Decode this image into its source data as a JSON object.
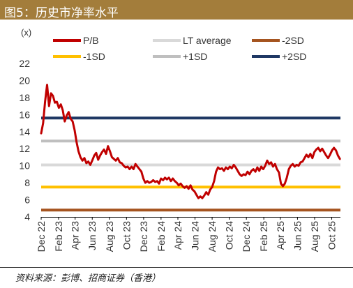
{
  "title": "图5：历史市净率水平",
  "source": "资料来源：彭博、招商证券（香港）",
  "colors": {
    "title_bar": "#a37d3b",
    "pb": "#c00000",
    "lt_average": "#d9d9d9",
    "minus2sd": "#a5541f",
    "minus1sd": "#ffc000",
    "plus1sd": "#bfbfbf",
    "plus2sd": "#1f3864"
  },
  "chart_data": {
    "type": "line",
    "ylabel": "(x)",
    "ylim": [
      4,
      22
    ],
    "y_ticks": [
      "4",
      "6",
      "8",
      "10",
      "12",
      "14",
      "16",
      "18",
      "20",
      "22"
    ],
    "x_start": "2022-12",
    "x_end": "2025-11",
    "x_ticks": [
      {
        "label": "Dec 22",
        "date": "2022-12"
      },
      {
        "label": "Feb 23",
        "date": "2023-02"
      },
      {
        "label": "Apr 23",
        "date": "2023-04"
      },
      {
        "label": "Jun 23",
        "date": "2023-06"
      },
      {
        "label": "Aug 23",
        "date": "2023-08"
      },
      {
        "label": "Oct 23",
        "date": "2023-10"
      },
      {
        "label": "Dec 23",
        "date": "2023-12"
      },
      {
        "label": "Feb 24",
        "date": "2024-02"
      },
      {
        "label": "Apr 24",
        "date": "2024-04"
      },
      {
        "label": "Jun 24",
        "date": "2024-06"
      },
      {
        "label": "Aug 24",
        "date": "2024-08"
      },
      {
        "label": "Oct 24",
        "date": "2024-10"
      },
      {
        "label": "Dec 24",
        "date": "2024-12"
      },
      {
        "label": "Feb 25",
        "date": "2025-02"
      },
      {
        "label": "Apr 25",
        "date": "2025-04"
      },
      {
        "label": "Jun 25",
        "date": "2025-06"
      },
      {
        "label": "Aug 25",
        "date": "2025-08"
      },
      {
        "label": "Oct 25",
        "date": "2025-10"
      }
    ],
    "legend": [
      "P/B",
      "LT average",
      "-2SD",
      "-1SD",
      "+1SD",
      "+2SD"
    ],
    "legend_placement": "top",
    "grid": false,
    "reference_lines": [
      {
        "name": "LT average",
        "value": 10.1
      },
      {
        "name": "-2SD",
        "value": 4.8
      },
      {
        "name": "-1SD",
        "value": 7.5
      },
      {
        "name": "+1SD",
        "value": 12.9
      },
      {
        "name": "+2SD",
        "value": 15.6
      }
    ],
    "series": [
      {
        "name": "P/B",
        "points": [
          [
            "2022-12-01",
            13.8
          ],
          [
            "2022-12-08",
            15.0
          ],
          [
            "2022-12-15",
            17.5
          ],
          [
            "2022-12-22",
            19.5
          ],
          [
            "2022-12-29",
            17.0
          ],
          [
            "2023-01-05",
            18.5
          ],
          [
            "2023-01-12",
            18.2
          ],
          [
            "2023-01-19",
            17.4
          ],
          [
            "2023-01-26",
            17.5
          ],
          [
            "2023-02-02",
            16.8
          ],
          [
            "2023-02-09",
            17.2
          ],
          [
            "2023-02-16",
            16.5
          ],
          [
            "2023-02-23",
            15.2
          ],
          [
            "2023-03-02",
            15.9
          ],
          [
            "2023-03-09",
            16.3
          ],
          [
            "2023-03-16",
            15.5
          ],
          [
            "2023-03-23",
            15.2
          ],
          [
            "2023-03-30",
            14.2
          ],
          [
            "2023-04-06",
            12.8
          ],
          [
            "2023-04-13",
            11.7
          ],
          [
            "2023-04-20",
            11.0
          ],
          [
            "2023-04-27",
            10.6
          ],
          [
            "2023-05-04",
            10.9
          ],
          [
            "2023-05-11",
            10.3
          ],
          [
            "2023-05-18",
            10.5
          ],
          [
            "2023-05-25",
            10.1
          ],
          [
            "2023-06-01",
            10.6
          ],
          [
            "2023-06-08",
            11.2
          ],
          [
            "2023-06-15",
            11.5
          ],
          [
            "2023-06-22",
            10.7
          ],
          [
            "2023-06-29",
            11.2
          ],
          [
            "2023-07-06",
            11.6
          ],
          [
            "2023-07-13",
            11.9
          ],
          [
            "2023-07-20",
            11.4
          ],
          [
            "2023-07-27",
            12.3
          ],
          [
            "2023-08-03",
            11.7
          ],
          [
            "2023-08-10",
            11.0
          ],
          [
            "2023-08-17",
            10.8
          ],
          [
            "2023-08-24",
            10.6
          ],
          [
            "2023-08-31",
            10.9
          ],
          [
            "2023-09-07",
            10.4
          ],
          [
            "2023-09-14",
            10.3
          ],
          [
            "2023-09-21",
            10.0
          ],
          [
            "2023-09-28",
            9.8
          ],
          [
            "2023-10-05",
            9.9
          ],
          [
            "2023-10-12",
            9.6
          ],
          [
            "2023-10-19",
            9.9
          ],
          [
            "2023-10-26",
            9.6
          ],
          [
            "2023-11-02",
            10.2
          ],
          [
            "2023-11-09",
            9.9
          ],
          [
            "2023-11-16",
            9.6
          ],
          [
            "2023-11-23",
            9.3
          ],
          [
            "2023-11-30",
            8.5
          ],
          [
            "2023-12-07",
            8.0
          ],
          [
            "2023-12-14",
            8.2
          ],
          [
            "2023-12-21",
            8.0
          ],
          [
            "2023-12-28",
            8.1
          ],
          [
            "2024-01-04",
            8.3
          ],
          [
            "2024-01-11",
            8.1
          ],
          [
            "2024-01-18",
            8.2
          ],
          [
            "2024-01-25",
            7.9
          ],
          [
            "2024-02-01",
            8.5
          ],
          [
            "2024-02-08",
            8.3
          ],
          [
            "2024-02-15",
            8.6
          ],
          [
            "2024-02-22",
            8.4
          ],
          [
            "2024-02-29",
            8.6
          ],
          [
            "2024-03-07",
            8.2
          ],
          [
            "2024-03-14",
            8.5
          ],
          [
            "2024-03-21",
            8.2
          ],
          [
            "2024-03-28",
            8.0
          ],
          [
            "2024-04-04",
            7.7
          ],
          [
            "2024-04-11",
            7.9
          ],
          [
            "2024-04-18",
            7.6
          ],
          [
            "2024-04-25",
            7.4
          ],
          [
            "2024-05-02",
            7.6
          ],
          [
            "2024-05-09",
            7.3
          ],
          [
            "2024-05-16",
            7.7
          ],
          [
            "2024-05-23",
            7.2
          ],
          [
            "2024-05-30",
            7.0
          ],
          [
            "2024-06-06",
            6.6
          ],
          [
            "2024-06-13",
            6.2
          ],
          [
            "2024-06-20",
            6.4
          ],
          [
            "2024-06-27",
            6.2
          ],
          [
            "2024-07-04",
            6.5
          ],
          [
            "2024-07-11",
            6.9
          ],
          [
            "2024-07-18",
            6.6
          ],
          [
            "2024-07-25",
            7.2
          ],
          [
            "2024-08-01",
            7.5
          ],
          [
            "2024-08-08",
            8.2
          ],
          [
            "2024-08-15",
            9.3
          ],
          [
            "2024-08-22",
            9.8
          ],
          [
            "2024-08-29",
            9.6
          ],
          [
            "2024-09-05",
            9.7
          ],
          [
            "2024-09-12",
            9.4
          ],
          [
            "2024-09-19",
            9.8
          ],
          [
            "2024-09-26",
            9.6
          ],
          [
            "2024-10-03",
            9.9
          ],
          [
            "2024-10-10",
            9.7
          ],
          [
            "2024-10-17",
            10.1
          ],
          [
            "2024-10-24",
            9.8
          ],
          [
            "2024-10-31",
            9.4
          ],
          [
            "2024-11-07",
            9.0
          ],
          [
            "2024-11-14",
            8.8
          ],
          [
            "2024-11-21",
            9.0
          ],
          [
            "2024-11-28",
            8.9
          ],
          [
            "2024-12-05",
            9.3
          ],
          [
            "2024-12-12",
            9.0
          ],
          [
            "2024-12-19",
            9.4
          ],
          [
            "2024-12-26",
            9.6
          ],
          [
            "2025-01-02",
            9.3
          ],
          [
            "2025-01-09",
            9.8
          ],
          [
            "2025-01-16",
            9.4
          ],
          [
            "2025-01-23",
            9.9
          ],
          [
            "2025-01-30",
            9.6
          ],
          [
            "2025-02-06",
            10.0
          ],
          [
            "2025-02-13",
            10.6
          ],
          [
            "2025-02-20",
            10.2
          ],
          [
            "2025-02-27",
            10.4
          ],
          [
            "2025-03-06",
            9.9
          ],
          [
            "2025-03-13",
            10.2
          ],
          [
            "2025-03-20",
            9.6
          ],
          [
            "2025-03-27",
            9.2
          ],
          [
            "2025-04-03",
            7.9
          ],
          [
            "2025-04-10",
            7.6
          ],
          [
            "2025-04-17",
            7.9
          ],
          [
            "2025-04-24",
            8.6
          ],
          [
            "2025-05-01",
            9.6
          ],
          [
            "2025-05-08",
            10.0
          ],
          [
            "2025-05-15",
            10.2
          ],
          [
            "2025-05-22",
            9.9
          ],
          [
            "2025-05-29",
            10.1
          ],
          [
            "2025-06-05",
            10.0
          ],
          [
            "2025-06-12",
            10.4
          ],
          [
            "2025-06-19",
            10.5
          ],
          [
            "2025-06-26",
            10.9
          ],
          [
            "2025-07-03",
            11.3
          ],
          [
            "2025-07-10",
            11.0
          ],
          [
            "2025-07-17",
            11.4
          ],
          [
            "2025-07-24",
            10.9
          ],
          [
            "2025-07-31",
            11.6
          ],
          [
            "2025-08-07",
            11.9
          ],
          [
            "2025-08-14",
            12.1
          ],
          [
            "2025-08-21",
            11.7
          ],
          [
            "2025-08-28",
            12.0
          ],
          [
            "2025-09-04",
            11.6
          ],
          [
            "2025-09-11",
            11.2
          ],
          [
            "2025-09-18",
            10.9
          ],
          [
            "2025-09-25",
            11.3
          ],
          [
            "2025-10-02",
            11.8
          ],
          [
            "2025-10-09",
            12.1
          ],
          [
            "2025-10-16",
            11.8
          ],
          [
            "2025-10-23",
            11.2
          ],
          [
            "2025-10-30",
            10.8
          ]
        ]
      }
    ]
  }
}
